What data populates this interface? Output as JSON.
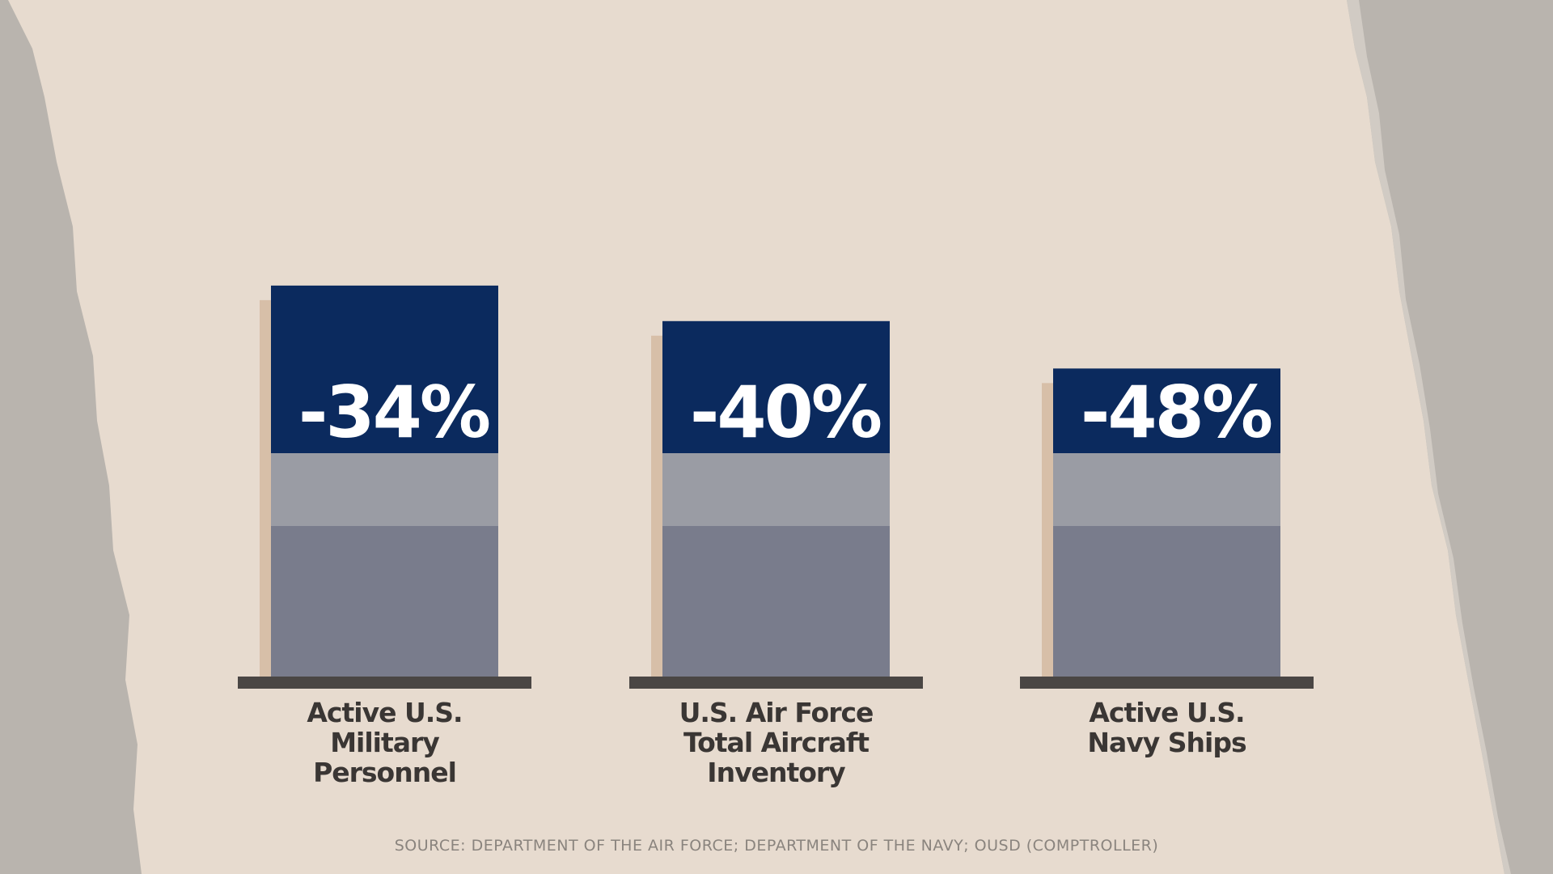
{
  "chart_data": {
    "type": "bar",
    "categories": [
      "Active U.S.\nMilitary\nPersonnel",
      "U.S. Air Force\nTotal Aircraft\nInventory",
      "Active U.S.\nNavy Ships"
    ],
    "values": [
      -34,
      -40,
      -48
    ],
    "value_labels": [
      "-34%",
      "-40%",
      "-48%"
    ],
    "color": "#0b2a5e",
    "ylim": [
      -100,
      0
    ],
    "source": "SOURCE: DEPARTMENT OF THE AIR FORCE; DEPARTMENT OF THE NAVY; OUSD (COMPTROLLER)"
  }
}
